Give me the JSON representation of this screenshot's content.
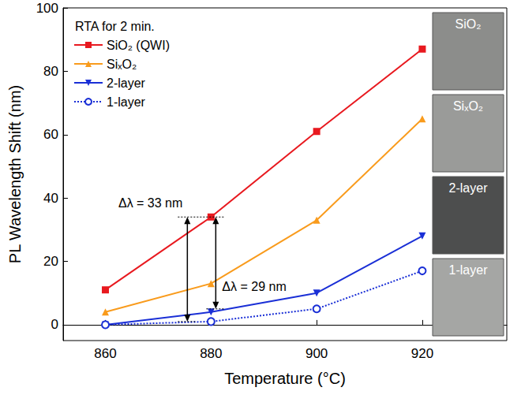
{
  "chart_data": {
    "type": "line",
    "title": "RTA for 2 min.",
    "xlabel": "Temperature (°C)",
    "ylabel": "PL Wavelength Shift (nm)",
    "x": [
      860,
      880,
      900,
      920
    ],
    "xlim": [
      852,
      936
    ],
    "xticks": [
      860,
      880,
      900,
      920
    ],
    "ylim": [
      -5,
      100
    ],
    "yticks": [
      0,
      20,
      40,
      60,
      80,
      100
    ],
    "grid": false,
    "legend": "upper left",
    "series": [
      {
        "name": "SiO₂ (QWI)",
        "color": "#e8191f",
        "marker": "square",
        "line_style": "solid",
        "values": [
          11,
          34,
          61,
          87
        ]
      },
      {
        "name": "SiₓO₂",
        "color": "#f99b1c",
        "marker": "triangle",
        "line_style": "solid",
        "values": [
          4,
          13,
          33,
          65
        ]
      },
      {
        "name": "2-layer",
        "color": "#1a2fd6",
        "marker": "triangle-down",
        "line_style": "solid",
        "values": [
          0,
          4,
          10,
          28
        ]
      },
      {
        "name": "1-layer",
        "color": "#1a2fd6",
        "marker": "circle-open",
        "line_style": "dotted",
        "values": [
          0,
          1,
          5,
          17
        ]
      }
    ],
    "annotations": [
      {
        "text": "Δλ = 33 nm",
        "value": 33
      },
      {
        "text": "Δλ = 29 nm",
        "value": 29
      }
    ],
    "insets": [
      "SiO₂",
      "SiₓO₂",
      "2-layer",
      "1-layer"
    ]
  }
}
